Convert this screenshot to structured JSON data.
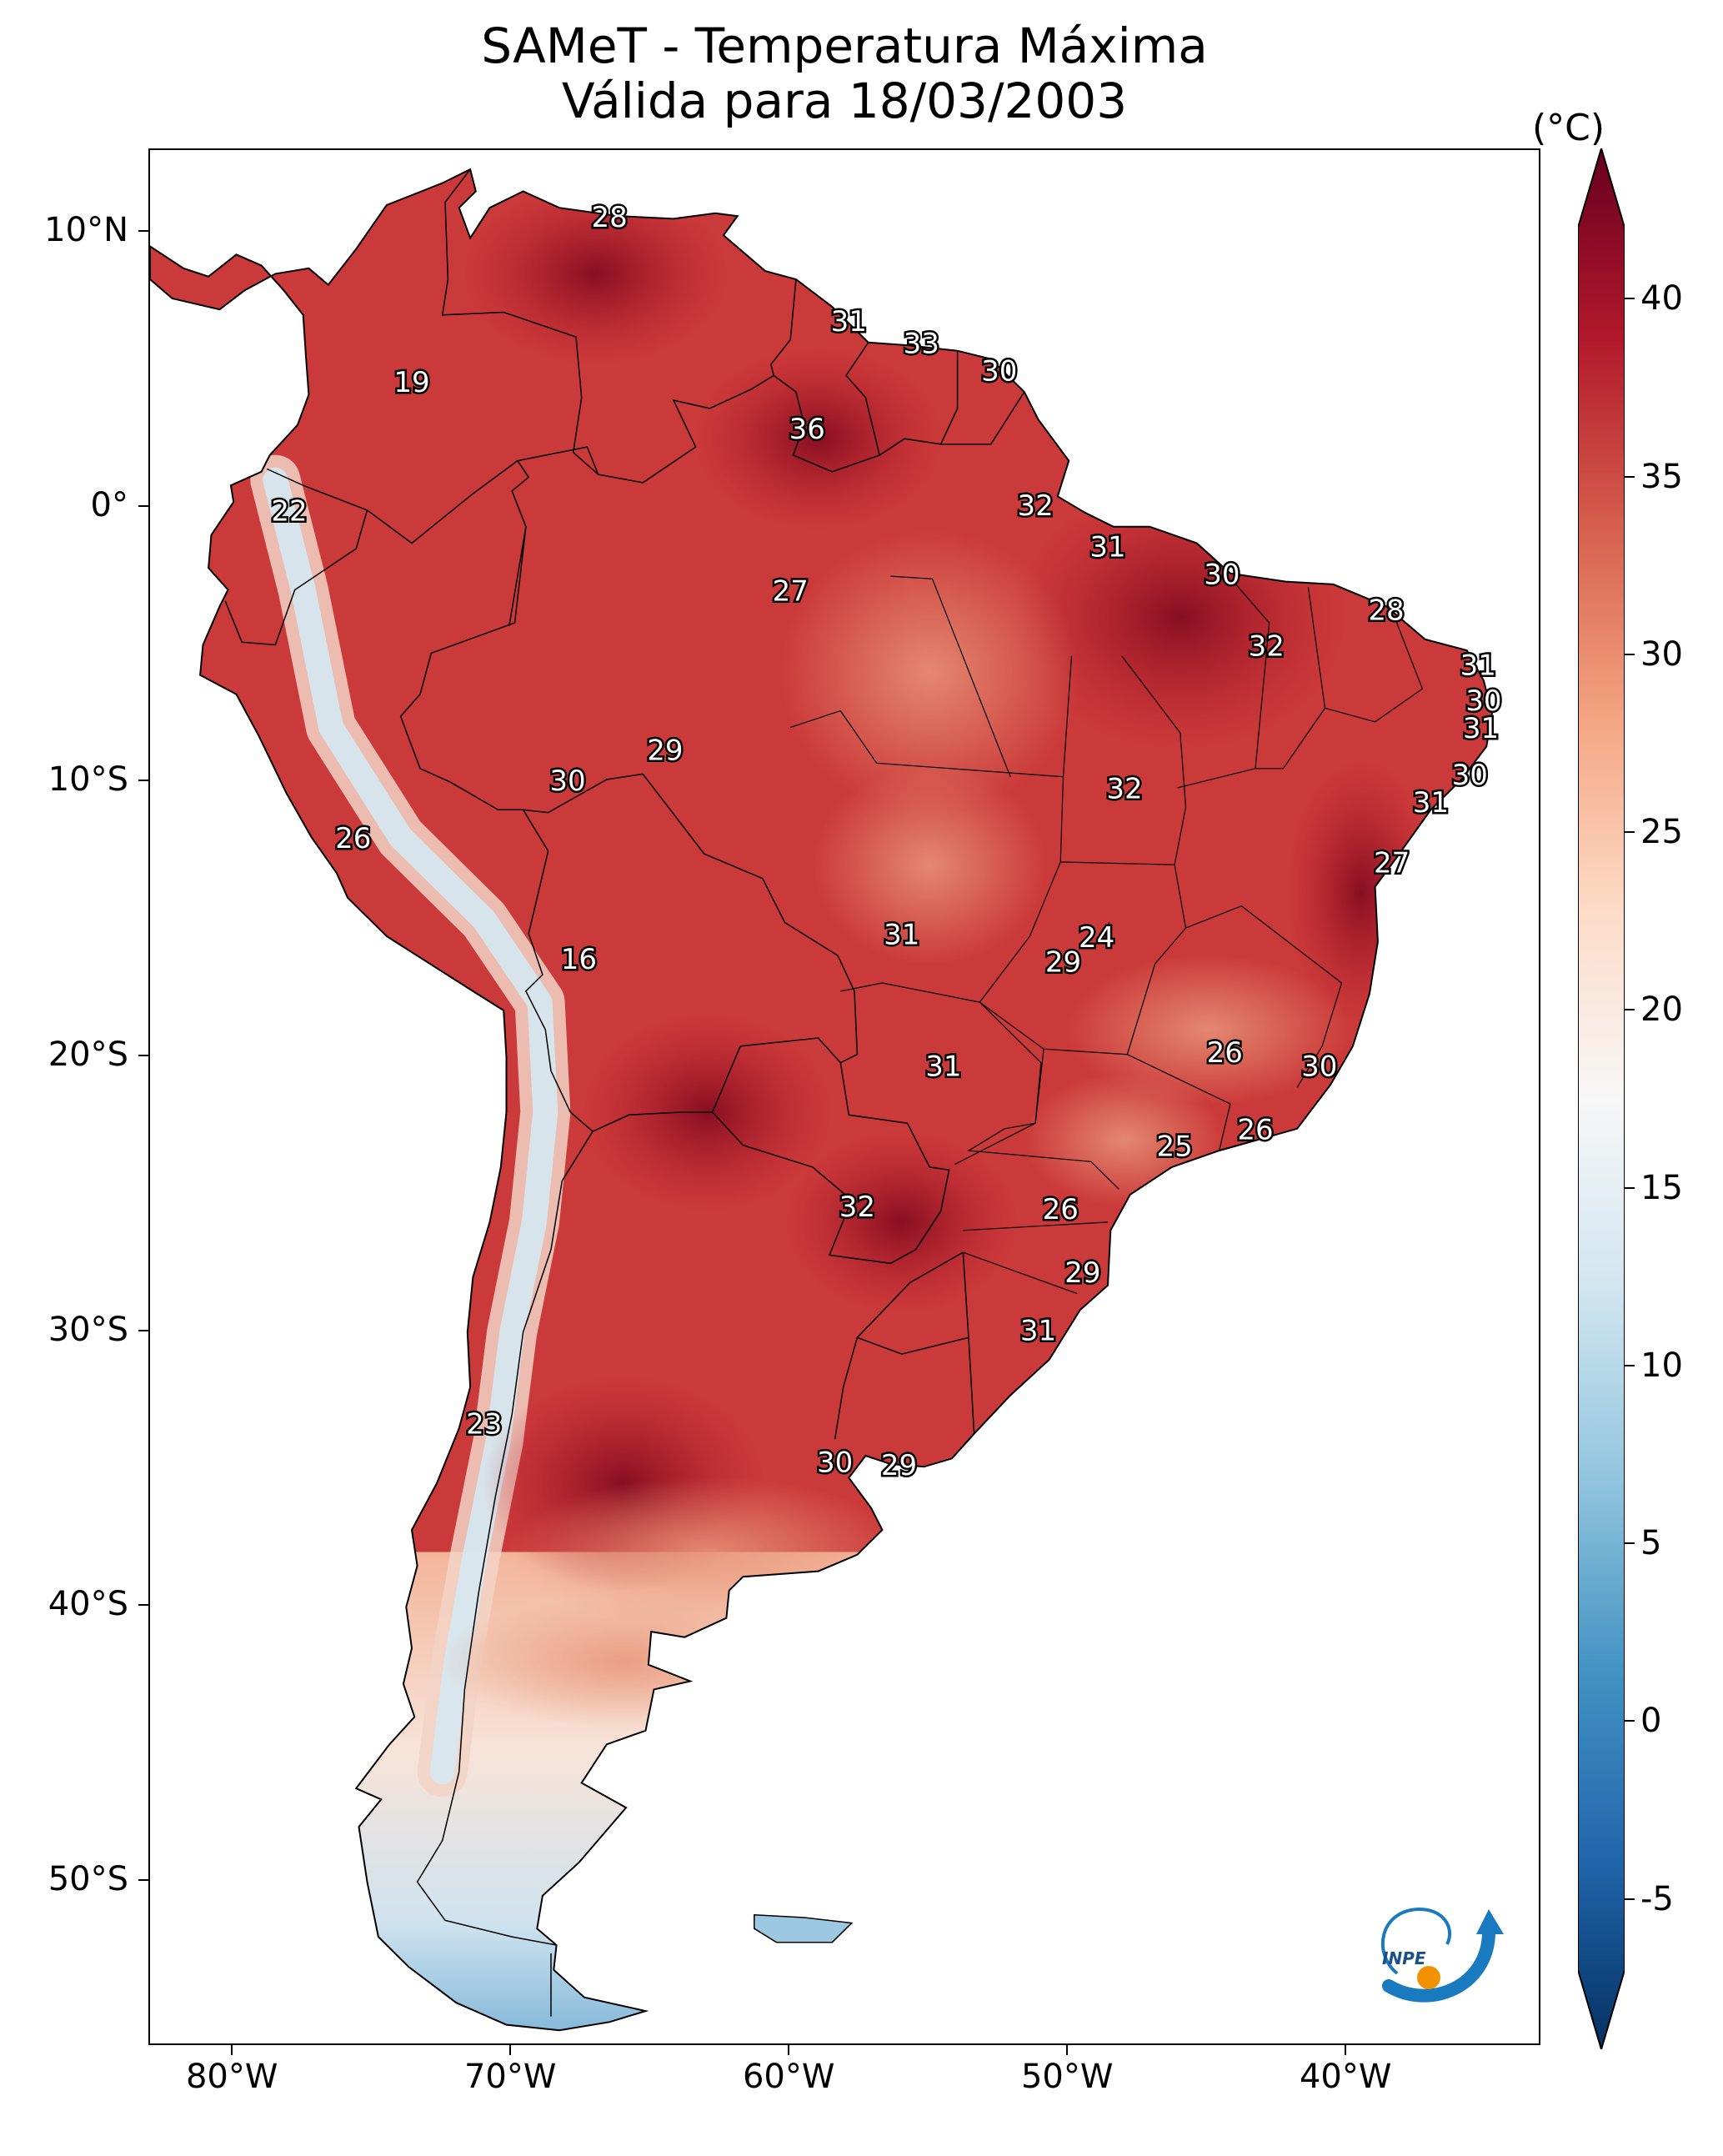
{
  "title": {
    "line1": "SAMeT - Temperatura Máxima",
    "line2": "Válida para 18/03/2003"
  },
  "map": {
    "lon_range": [
      -83,
      -33
    ],
    "lat_range": [
      -56,
      13
    ],
    "lat_ticks": [
      {
        "lat": 10,
        "label": "10°N"
      },
      {
        "lat": 0,
        "label": "0°"
      },
      {
        "lat": -10,
        "label": "10°S"
      },
      {
        "lat": -20,
        "label": "20°S"
      },
      {
        "lat": -30,
        "label": "30°S"
      },
      {
        "lat": -40,
        "label": "40°S"
      },
      {
        "lat": -50,
        "label": "50°S"
      }
    ],
    "lon_ticks": [
      {
        "lon": -80,
        "label": "80°W"
      },
      {
        "lon": -70,
        "label": "70°W"
      },
      {
        "lon": -60,
        "label": "60°W"
      },
      {
        "lon": -50,
        "label": "50°W"
      },
      {
        "lon": -40,
        "label": "40°W"
      }
    ],
    "station_labels": [
      {
        "lon": -66.5,
        "lat": 10.5,
        "text": "28"
      },
      {
        "lon": -57.9,
        "lat": 6.7,
        "text": "31"
      },
      {
        "lon": -55.3,
        "lat": 5.9,
        "text": "33"
      },
      {
        "lon": -52.5,
        "lat": 4.9,
        "text": "30"
      },
      {
        "lon": -73.6,
        "lat": 4.5,
        "text": "19"
      },
      {
        "lon": -59.4,
        "lat": 2.8,
        "text": "36"
      },
      {
        "lon": -78.0,
        "lat": -0.2,
        "text": "22"
      },
      {
        "lon": -51.2,
        "lat": 0.0,
        "text": "32"
      },
      {
        "lon": -48.6,
        "lat": -1.5,
        "text": "31"
      },
      {
        "lon": -44.5,
        "lat": -2.5,
        "text": "30"
      },
      {
        "lon": -60.0,
        "lat": -3.1,
        "text": "27"
      },
      {
        "lon": -38.6,
        "lat": -3.8,
        "text": "28"
      },
      {
        "lon": -42.9,
        "lat": -5.1,
        "text": "32"
      },
      {
        "lon": -35.3,
        "lat": -5.8,
        "text": "31"
      },
      {
        "lon": -35.1,
        "lat": -7.1,
        "text": "30"
      },
      {
        "lon": -35.2,
        "lat": -8.1,
        "text": "31"
      },
      {
        "lon": -64.5,
        "lat": -8.9,
        "text": "29"
      },
      {
        "lon": -68.0,
        "lat": -10.0,
        "text": "30"
      },
      {
        "lon": -35.6,
        "lat": -9.8,
        "text": "30"
      },
      {
        "lon": -48.0,
        "lat": -10.3,
        "text": "32"
      },
      {
        "lon": -37.0,
        "lat": -10.8,
        "text": "31"
      },
      {
        "lon": -75.7,
        "lat": -12.1,
        "text": "26"
      },
      {
        "lon": -38.4,
        "lat": -13.0,
        "text": "27"
      },
      {
        "lon": -56.0,
        "lat": -15.6,
        "text": "31"
      },
      {
        "lon": -49.0,
        "lat": -15.7,
        "text": "24"
      },
      {
        "lon": -50.2,
        "lat": -16.6,
        "text": "29"
      },
      {
        "lon": -67.6,
        "lat": -16.5,
        "text": "16"
      },
      {
        "lon": -44.4,
        "lat": -19.9,
        "text": "26"
      },
      {
        "lon": -41.0,
        "lat": -20.4,
        "text": "30"
      },
      {
        "lon": -54.5,
        "lat": -20.4,
        "text": "31"
      },
      {
        "lon": -43.3,
        "lat": -22.7,
        "text": "26"
      },
      {
        "lon": -46.2,
        "lat": -23.3,
        "text": "25"
      },
      {
        "lon": -57.6,
        "lat": -25.5,
        "text": "32"
      },
      {
        "lon": -50.3,
        "lat": -25.6,
        "text": "26"
      },
      {
        "lon": -49.5,
        "lat": -27.9,
        "text": "29"
      },
      {
        "lon": -51.1,
        "lat": -30.0,
        "text": "31"
      },
      {
        "lon": -71.0,
        "lat": -33.4,
        "text": "23"
      },
      {
        "lon": -58.4,
        "lat": -34.8,
        "text": "30"
      },
      {
        "lon": -56.1,
        "lat": -34.9,
        "text": "29"
      }
    ]
  },
  "colorbar": {
    "unit": "(°C)",
    "min": -7,
    "max": 42,
    "ticks": [
      {
        "value": 40,
        "label": "40"
      },
      {
        "value": 35,
        "label": "35"
      },
      {
        "value": 30,
        "label": "30"
      },
      {
        "value": 25,
        "label": "25"
      },
      {
        "value": 20,
        "label": "20"
      },
      {
        "value": 15,
        "label": "15"
      },
      {
        "value": 10,
        "label": "10"
      },
      {
        "value": 5,
        "label": "5"
      },
      {
        "value": 0,
        "label": "0"
      },
      {
        "value": -5,
        "label": "-5"
      }
    ],
    "colors": [
      "#053061",
      "#2166ac",
      "#4393c3",
      "#92c5de",
      "#d1e5f0",
      "#f7f7f7",
      "#fddbc7",
      "#f4a582",
      "#d6604d",
      "#b2182b",
      "#67001f"
    ]
  },
  "logo": {
    "text": "INPE",
    "ring_color": "#1a7abf",
    "dot_color": "#f39200"
  }
}
